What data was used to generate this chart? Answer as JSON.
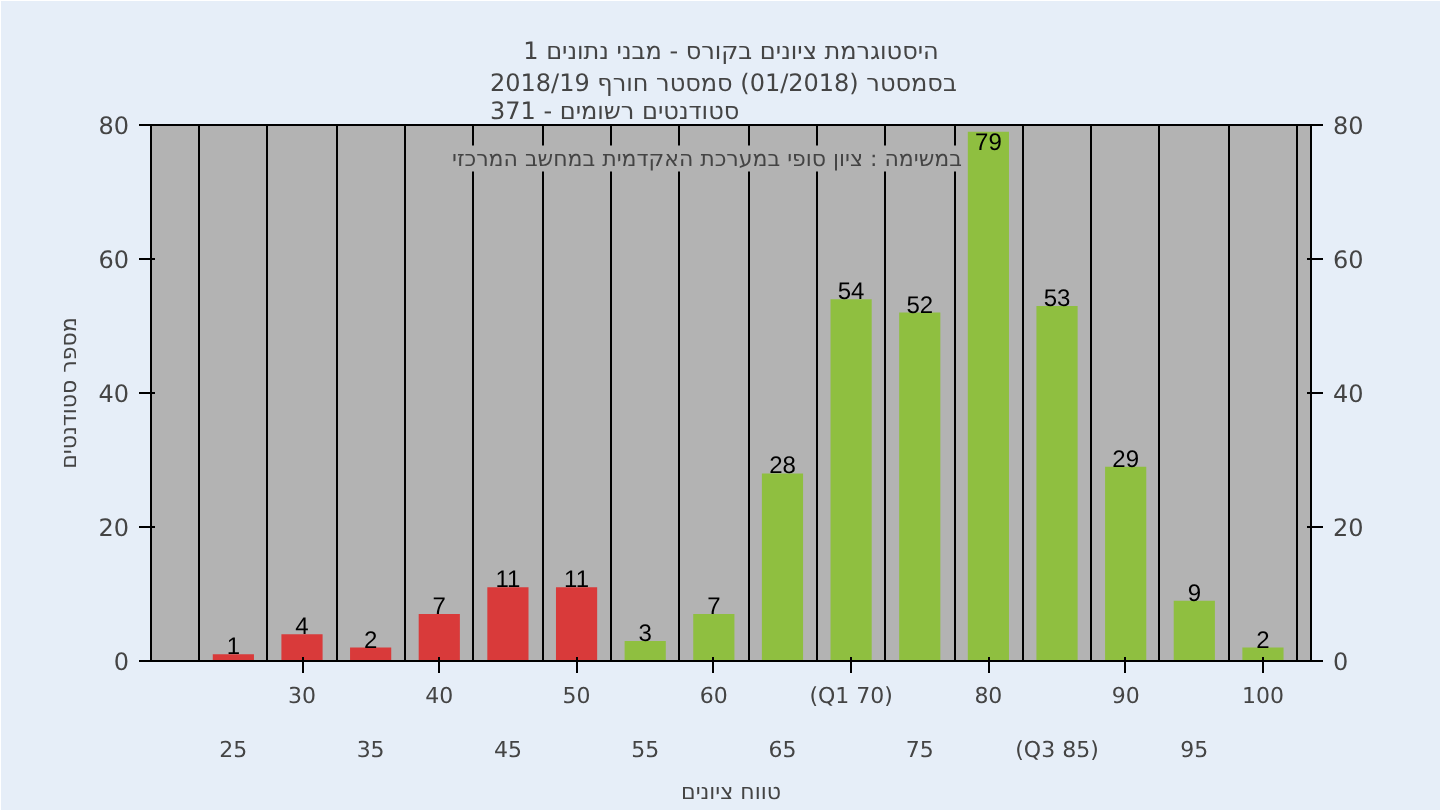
{
  "chart_data": {
    "type": "bar",
    "title": "היסטוגרמת ציונים בקורס - מבני נתונים 1",
    "subtitle": "בסמסטר  (01/2018)  סמסטר חורף 2018/19\nסטודנטים רשומים - 371",
    "xlabel": "טווח ציונים",
    "ylabel": "מספר סטודנטים",
    "annotations": [
      "במשימה : ציון סופי במערכת האקדמית במחשב המרכזי"
    ],
    "categories": [
      "25",
      "30",
      "35",
      "40",
      "45",
      "50",
      "55",
      "60",
      "65",
      "(Q1 70)",
      "75",
      "80",
      "(Q3 85)",
      "90",
      "95",
      "100"
    ],
    "series": [
      {
        "colors": [
          "#d93a3a",
          "#d93a3a",
          "#d93a3a",
          "#d93a3a",
          "#d93a3a",
          "#d93a3a",
          "#8fbf40",
          "#8fbf40",
          "#8fbf40",
          "#8fbf40",
          "#8fbf40",
          "#8fbf40",
          "#8fbf40",
          "#8fbf40",
          "#8fbf40",
          "#8fbf40"
        ],
        "values": [
          1,
          4,
          2,
          7,
          11,
          11,
          3,
          7,
          28,
          54,
          52,
          79,
          53,
          29,
          9,
          2
        ]
      }
    ],
    "data_labels": true,
    "ylim": [
      0,
      80
    ],
    "yticks": [
      0,
      20,
      40,
      60,
      80
    ],
    "y2lim": [
      0,
      80
    ],
    "y2ticks": [
      0,
      20,
      40,
      60,
      80
    ],
    "grid": "x"
  }
}
